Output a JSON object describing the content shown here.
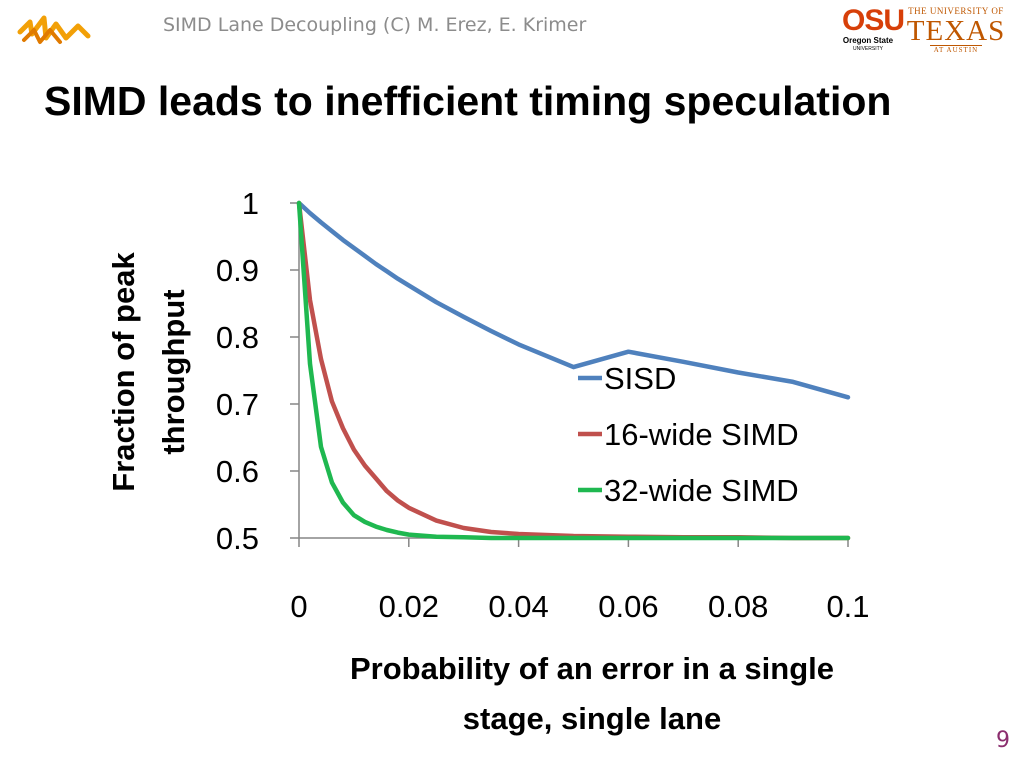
{
  "slide": {
    "header": "SIMD Lane Decoupling (C) M. Erez, E. Krimer",
    "title": "SIMD leads to inefficient timing speculation",
    "page_number": "9"
  },
  "logos": {
    "left": "lightning-logo-icon",
    "osu": {
      "big": "OSU",
      "small": "Oregon State",
      "tiny": "UNIVERSITY",
      "color": "#d73f09"
    },
    "ut": {
      "line1": "THE UNIVERSITY OF",
      "line2": "TEXAS",
      "line3": "AT AUSTIN",
      "color": "#bf5700"
    }
  },
  "chart_data": {
    "type": "line",
    "title": "",
    "xlabel_lines": [
      "Probability of an error in a single",
      "stage, single lane"
    ],
    "ylabel_lines": [
      "Fraction of peak",
      "throughput"
    ],
    "xlim": [
      0,
      0.1
    ],
    "ylim": [
      0.5,
      1
    ],
    "x_ticks": [
      "0",
      "0.02",
      "0.04",
      "0.06",
      "0.08",
      "0.1"
    ],
    "y_ticks": [
      "0.5",
      "0.6",
      "0.7",
      "0.8",
      "0.9",
      "1"
    ],
    "grid": false,
    "legend_position": "right",
    "x": [
      0,
      0.002,
      0.004,
      0.006,
      0.008,
      0.01,
      0.012,
      0.014,
      0.016,
      0.018,
      0.02,
      0.025,
      0.03,
      0.035,
      0.04,
      0.05,
      0.06,
      0.07,
      0.08,
      0.09,
      0.1
    ],
    "series": [
      {
        "name": "SISD",
        "color": "#4f81bd",
        "values": [
          1.0,
          0.985,
          0.971,
          0.958,
          0.945,
          0.933,
          0.921,
          0.909,
          0.898,
          0.887,
          0.877,
          0.852,
          0.83,
          0.809,
          0.789,
          0.755,
          0.778,
          0.763,
          0.747,
          0.733,
          0.71
        ]
      },
      {
        "name": "16-wide SIMD",
        "color": "#c0504d",
        "values": [
          1.0,
          0.855,
          0.767,
          0.704,
          0.664,
          0.632,
          0.608,
          0.589,
          0.57,
          0.556,
          0.545,
          0.526,
          0.515,
          0.509,
          0.506,
          0.503,
          0.502,
          0.501,
          0.501,
          0.5,
          0.5
        ]
      },
      {
        "name": "32-wide SIMD",
        "color": "#1fb850",
        "values": [
          1.0,
          0.76,
          0.636,
          0.583,
          0.553,
          0.534,
          0.524,
          0.517,
          0.512,
          0.508,
          0.505,
          0.502,
          0.501,
          0.5,
          0.5,
          0.5,
          0.5,
          0.5,
          0.5,
          0.5,
          0.5
        ]
      }
    ]
  }
}
